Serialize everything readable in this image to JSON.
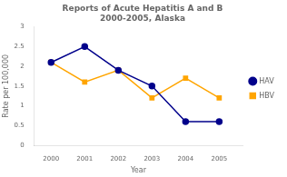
{
  "chart_data": {
    "type": "line",
    "title": "Reports of Acute Hepatitis A and B\n2000-2005, Alaska",
    "x_label": "Year",
    "y_label": "Rate per 100,000",
    "x": [
      2000,
      2001,
      2002,
      2003,
      2004,
      2005
    ],
    "series": [
      {
        "name": "HAV",
        "color": "#00008B",
        "marker": "circle",
        "values": [
          2.1,
          2.5,
          1.9,
          1.5,
          0.6,
          0.6
        ]
      },
      {
        "name": "HBV",
        "color": "#FFA500",
        "marker": "square",
        "values": [
          2.1,
          1.6,
          1.9,
          1.2,
          1.7,
          1.2
        ]
      }
    ],
    "xlim": [
      1999.5,
      2005.7
    ],
    "xticks": [
      2000,
      2001,
      2002,
      2003,
      2004,
      2005
    ],
    "ylim": [
      0,
      3
    ],
    "yticks": [
      0,
      0.5,
      1,
      1.5,
      2,
      2.5,
      3
    ],
    "grid": false,
    "legend": "right"
  }
}
